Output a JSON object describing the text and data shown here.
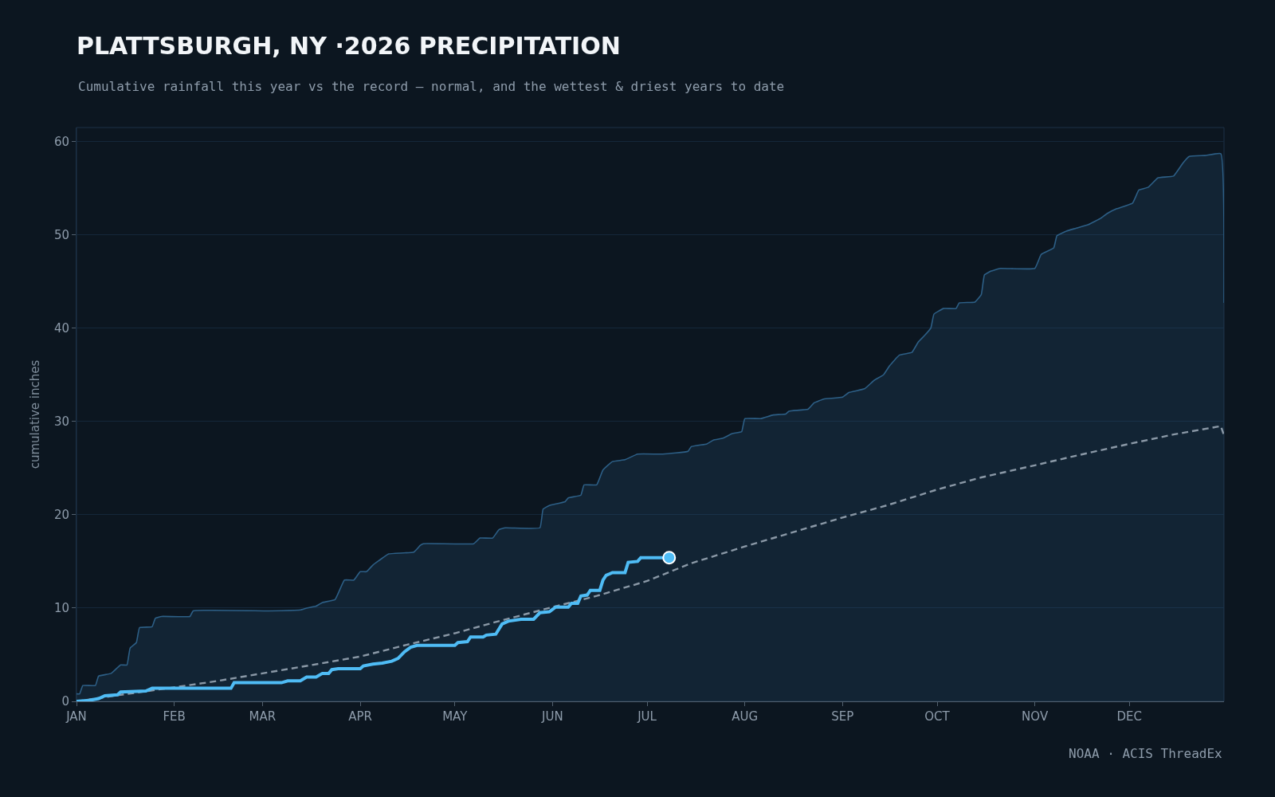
{
  "chart_data": {
    "type": "line",
    "title": "PLATTSBURGH, NY ·2026 PRECIPITATION",
    "subtitle": "Cumulative rainfall this year vs the record — normal, and the wettest & driest years to date",
    "ylabel": "cumulative inches",
    "annotations": [
      "NOAA · ACIS ThreadEx"
    ],
    "xlim": [
      "2026-01-01",
      "2026-12-31"
    ],
    "xticks": [
      {
        "value": "2026-01-01",
        "label": "JAN"
      },
      {
        "value": "2026-02-01",
        "label": "FEB"
      },
      {
        "value": "2026-03-01",
        "label": "MAR"
      },
      {
        "value": "2026-04-01",
        "label": "APR"
      },
      {
        "value": "2026-05-01",
        "label": "MAY"
      },
      {
        "value": "2026-06-01",
        "label": "JUN"
      },
      {
        "value": "2026-07-01",
        "label": "JUL"
      },
      {
        "value": "2026-08-01",
        "label": "AUG"
      },
      {
        "value": "2026-09-01",
        "label": "SEP"
      },
      {
        "value": "2026-10-01",
        "label": "OCT"
      },
      {
        "value": "2026-11-01",
        "label": "NOV"
      },
      {
        "value": "2026-12-01",
        "label": "DEC"
      }
    ],
    "ylim": [
      0,
      61.5
    ],
    "yticks": [
      0,
      10,
      20,
      30,
      40,
      50,
      60
    ],
    "grid": "y",
    "series": [
      {
        "type": "area",
        "color": "#2d5f86",
        "x": [
          "2026-01-01",
          "2026-01-02",
          "2026-01-03",
          "2026-01-07",
          "2026-01-08",
          "2026-01-12",
          "2026-01-15",
          "2026-01-17",
          "2026-01-18",
          "2026-01-20",
          "2026-01-21",
          "2026-01-25",
          "2026-01-26",
          "2026-01-28",
          "2026-02-06",
          "2026-02-07",
          "2026-03-03",
          "2026-03-13",
          "2026-03-15",
          "2026-03-18",
          "2026-03-20",
          "2026-03-24",
          "2026-03-27",
          "2026-03-30",
          "2026-04-01",
          "2026-04-03",
          "2026-04-05",
          "2026-04-07",
          "2026-04-10",
          "2026-04-18",
          "2026-04-20",
          "2026-04-21",
          "2026-05-07",
          "2026-05-09",
          "2026-05-13",
          "2026-05-15",
          "2026-05-17",
          "2026-05-28",
          "2026-05-29",
          "2026-05-31",
          "2026-06-05",
          "2026-06-06",
          "2026-06-10",
          "2026-06-11",
          "2026-06-15",
          "2026-06-17",
          "2026-06-20",
          "2026-06-24",
          "2026-06-28",
          "2026-07-06",
          "2026-07-14",
          "2026-07-15",
          "2026-07-20",
          "2026-07-22",
          "2026-07-25",
          "2026-07-28",
          "2026-07-31",
          "2026-08-01",
          "2026-08-06",
          "2026-08-10",
          "2026-08-14",
          "2026-08-15",
          "2026-08-21",
          "2026-08-23",
          "2026-08-26",
          "2026-09-01",
          "2026-09-03",
          "2026-09-08",
          "2026-09-11",
          "2026-09-14",
          "2026-09-16",
          "2026-09-19",
          "2026-09-23",
          "2026-09-25",
          "2026-09-27",
          "2026-09-29",
          "2026-09-30",
          "2026-10-03",
          "2026-10-07",
          "2026-10-08",
          "2026-10-13",
          "2026-10-15",
          "2026-10-16",
          "2026-10-18",
          "2026-10-21",
          "2026-11-01",
          "2026-11-03",
          "2026-11-07",
          "2026-11-08",
          "2026-11-11",
          "2026-11-14",
          "2026-11-18",
          "2026-11-22",
          "2026-11-24",
          "2026-11-27",
          "2026-12-02",
          "2026-12-04",
          "2026-12-07",
          "2026-12-10",
          "2026-12-15",
          "2026-12-18",
          "2026-12-20",
          "2026-12-25",
          "2026-12-30",
          "2026-12-31"
        ],
        "values": [
          0.8,
          0.8,
          1.7,
          1.7,
          2.7,
          3.0,
          3.9,
          3.9,
          5.7,
          6.3,
          7.9,
          8.0,
          8.9,
          9.1,
          9.1,
          9.7,
          9.7,
          9.8,
          10.0,
          10.2,
          10.6,
          10.9,
          13.0,
          13.0,
          13.9,
          13.9,
          14.6,
          15.1,
          15.8,
          16.0,
          16.7,
          16.9,
          16.9,
          17.5,
          17.5,
          18.4,
          18.6,
          18.6,
          20.6,
          21.0,
          21.4,
          21.8,
          22.1,
          23.2,
          23.2,
          24.8,
          25.7,
          25.9,
          26.5,
          26.5,
          26.8,
          27.3,
          27.6,
          28.0,
          28.2,
          28.7,
          28.9,
          30.3,
          30.3,
          30.7,
          30.8,
          31.1,
          31.3,
          32.0,
          32.4,
          32.6,
          33.1,
          33.5,
          34.4,
          35.0,
          36.0,
          37.1,
          37.4,
          38.5,
          39.2,
          40.0,
          41.5,
          42.1,
          42.1,
          42.7,
          42.8,
          43.6,
          45.7,
          46.1,
          46.4,
          46.4,
          47.9,
          48.6,
          49.9,
          50.4,
          50.7,
          51.1,
          51.8,
          52.3,
          52.8,
          53.4,
          54.8,
          55.1,
          56.1,
          56.3,
          57.7,
          58.4,
          58.5,
          58.7,
          42.7
        ]
      },
      {
        "color": "#8a98a6",
        "line_style": "dashed",
        "x": [
          "2026-01-01",
          "2026-01-15",
          "2026-02-01",
          "2026-02-15",
          "2026-03-01",
          "2026-03-15",
          "2026-04-01",
          "2026-04-15",
          "2026-05-01",
          "2026-05-15",
          "2026-06-01",
          "2026-06-15",
          "2026-07-01",
          "2026-07-15",
          "2026-08-01",
          "2026-08-15",
          "2026-09-01",
          "2026-09-15",
          "2026-10-01",
          "2026-10-15",
          "2026-11-01",
          "2026-11-15",
          "2026-12-01",
          "2026-12-15",
          "2026-12-30",
          "2026-12-31"
        ],
        "values": [
          0,
          0.7,
          1.5,
          2.2,
          3.0,
          3.8,
          4.8,
          6.0,
          7.3,
          8.6,
          10.1,
          11.3,
          12.9,
          14.8,
          16.6,
          18.0,
          19.7,
          21.0,
          22.7,
          24.0,
          25.3,
          26.4,
          27.6,
          28.6,
          29.5,
          28.5
        ]
      },
      {
        "color": "#4fbcf5",
        "x": [
          "2026-01-01",
          "2026-01-05",
          "2026-01-08",
          "2026-01-10",
          "2026-01-14",
          "2026-01-15",
          "2026-01-23",
          "2026-01-25",
          "2026-02-19",
          "2026-02-20",
          "2026-03-07",
          "2026-03-09",
          "2026-03-13",
          "2026-03-15",
          "2026-03-18",
          "2026-03-20",
          "2026-03-22",
          "2026-03-23",
          "2026-03-25",
          "2026-04-01",
          "2026-04-02",
          "2026-04-05",
          "2026-04-08",
          "2026-04-11",
          "2026-04-13",
          "2026-04-15",
          "2026-04-17",
          "2026-04-19",
          "2026-05-01",
          "2026-05-02",
          "2026-05-05",
          "2026-05-06",
          "2026-05-10",
          "2026-05-11",
          "2026-05-14",
          "2026-05-16",
          "2026-05-18",
          "2026-05-22",
          "2026-05-26",
          "2026-05-28",
          "2026-05-31",
          "2026-06-02",
          "2026-06-06",
          "2026-06-07",
          "2026-06-09",
          "2026-06-10",
          "2026-06-12",
          "2026-06-13",
          "2026-06-16",
          "2026-06-17",
          "2026-06-18",
          "2026-06-20",
          "2026-06-24",
          "2026-06-25",
          "2026-06-28",
          "2026-06-29",
          "2026-07-08"
        ],
        "values": [
          0,
          0.1,
          0.3,
          0.6,
          0.7,
          1.0,
          1.1,
          1.4,
          1.4,
          2.0,
          2.0,
          2.2,
          2.2,
          2.6,
          2.6,
          3.0,
          3.0,
          3.4,
          3.5,
          3.5,
          3.8,
          4.0,
          4.1,
          4.3,
          4.6,
          5.3,
          5.8,
          6.0,
          6.0,
          6.3,
          6.4,
          6.9,
          6.9,
          7.1,
          7.2,
          8.3,
          8.6,
          8.8,
          8.8,
          9.5,
          9.6,
          10.1,
          10.1,
          10.5,
          10.5,
          11.3,
          11.4,
          11.9,
          11.9,
          13.0,
          13.5,
          13.8,
          13.8,
          14.9,
          15.0,
          15.4,
          15.4
        ]
      },
      {
        "type": "scatter",
        "color": "#4fbcf5",
        "marker": "circle",
        "x": [
          "2026-07-08"
        ],
        "values": [
          15.4
        ]
      }
    ]
  }
}
